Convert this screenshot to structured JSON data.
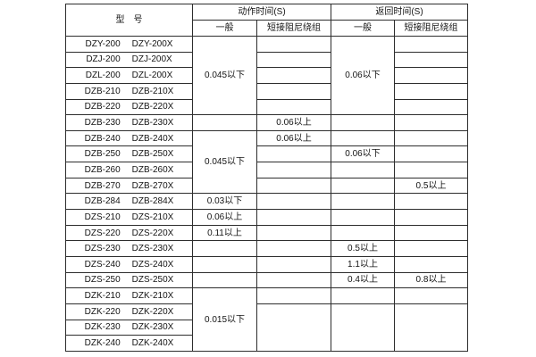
{
  "page": {
    "background": "#ffffff",
    "border_color": "#2d2d2d",
    "text_color": "#141414"
  },
  "table": {
    "header": {
      "model_label": "型　号",
      "action_group_label": "动作时间(S)",
      "return_group_label": "返回时间(S)",
      "general_label": "一般",
      "damping_label": "短接阻尼绕组"
    },
    "rows": [
      {
        "models": [
          "DZY-200",
          "DZY-200X"
        ],
        "action_general": {
          "text": "0.045以下",
          "rowspan": 5
        },
        "action_damping": "",
        "return_general": {
          "text": "0.06以下",
          "rowspan": 5
        },
        "return_damping": ""
      },
      {
        "models": [
          "DZJ-200",
          "DZJ-200X"
        ],
        "action_general": null,
        "action_damping": "",
        "return_general": null,
        "return_damping": ""
      },
      {
        "models": [
          "DZL-200",
          "DZL-200X"
        ],
        "action_general": null,
        "action_damping": "",
        "return_general": null,
        "return_damping": ""
      },
      {
        "models": [
          "DZB-210",
          "DZB-210X"
        ],
        "action_general": null,
        "action_damping": "",
        "return_general": null,
        "return_damping": ""
      },
      {
        "models": [
          "DZB-220",
          "DZB-220X"
        ],
        "action_general": null,
        "action_damping": "",
        "return_general": null,
        "return_damping": ""
      },
      {
        "models": [
          "DZB-230",
          "DZB-230X"
        ],
        "action_general": "",
        "action_damping": "0.06以上",
        "return_general": "",
        "return_damping": ""
      },
      {
        "models": [
          "DZB-240",
          "DZB-240X"
        ],
        "action_general": {
          "text": "0.045以下",
          "rowspan": 4
        },
        "action_damping": "0.06以上",
        "return_general": "",
        "return_damping": ""
      },
      {
        "models": [
          "DZB-250",
          "DZB-250X"
        ],
        "action_general": null,
        "action_damping": "",
        "return_general": "0.06以下",
        "return_damping": ""
      },
      {
        "models": [
          "DZB-260",
          "DZB-260X"
        ],
        "action_general": null,
        "action_damping": "",
        "return_general": "",
        "return_damping": ""
      },
      {
        "models": [
          "DZB-270",
          "DZB-270X"
        ],
        "action_general": null,
        "action_damping": "",
        "return_general": "",
        "return_damping": "0.5以上"
      },
      {
        "models": [
          "DZB-284",
          "DZB-284X"
        ],
        "action_general": "0.03以下",
        "action_damping": "",
        "return_general": "",
        "return_damping": ""
      },
      {
        "models": [
          "DZS-210",
          "DZS-210X"
        ],
        "action_general": "0.06以上",
        "action_damping": "",
        "return_general": "",
        "return_damping": ""
      },
      {
        "models": [
          "DZS-220",
          "DZS-220X"
        ],
        "action_general": "0.11以上",
        "action_damping": "",
        "return_general": "",
        "return_damping": ""
      },
      {
        "models": [
          "DZS-230",
          "DZS-230X"
        ],
        "action_general": "",
        "action_damping": "",
        "return_general": "0.5以上",
        "return_damping": ""
      },
      {
        "models": [
          "DZS-240",
          "DZS-240X"
        ],
        "action_general": "",
        "action_damping": "",
        "return_general": "1.1以上",
        "return_damping": ""
      },
      {
        "models": [
          "DZS-250",
          "DZS-250X"
        ],
        "action_general": "",
        "action_damping": "",
        "return_general": "0.4以上",
        "return_damping": "0.8以上"
      },
      {
        "models": [
          "DZK-210",
          "DZK-210X"
        ],
        "action_general": {
          "text": "0.015以下",
          "rowspan": 4
        },
        "action_damping": "",
        "return_general": "",
        "return_damping": ""
      },
      {
        "models": [
          "DZK-220",
          "DZK-220X"
        ],
        "action_general": null,
        "action_damping": {
          "text": "",
          "rowspan": 3
        },
        "return_general": {
          "text": "",
          "rowspan": 3
        },
        "return_damping": {
          "text": "",
          "rowspan": 3
        }
      },
      {
        "models": [
          "DZK-230",
          "DZK-230X"
        ],
        "action_general": null,
        "action_damping": null,
        "return_general": null,
        "return_damping": null
      },
      {
        "models": [
          "DZK-240",
          "DZK-240X"
        ],
        "action_general": null,
        "action_damping": null,
        "return_general": null,
        "return_damping": null
      }
    ]
  }
}
